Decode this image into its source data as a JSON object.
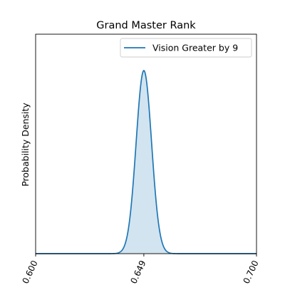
{
  "chart_data": {
    "type": "area",
    "title": "Grand Master Rank",
    "xlabel": "",
    "ylabel": "Probability Density",
    "xlim": [
      0.6,
      0.7
    ],
    "xticks": [
      0.6,
      0.649,
      0.7
    ],
    "xtick_labels": [
      "0.600",
      "0.649",
      "0.700"
    ],
    "yticks_visible": false,
    "grid": false,
    "legend_position": "upper right",
    "series": [
      {
        "name": "Vision Greater by 9",
        "color": "#1f77b4",
        "fill_color": "#1f77b4",
        "fill_opacity": 0.2,
        "distribution": "normal",
        "mean": 0.649,
        "std": 0.0035
      }
    ]
  }
}
